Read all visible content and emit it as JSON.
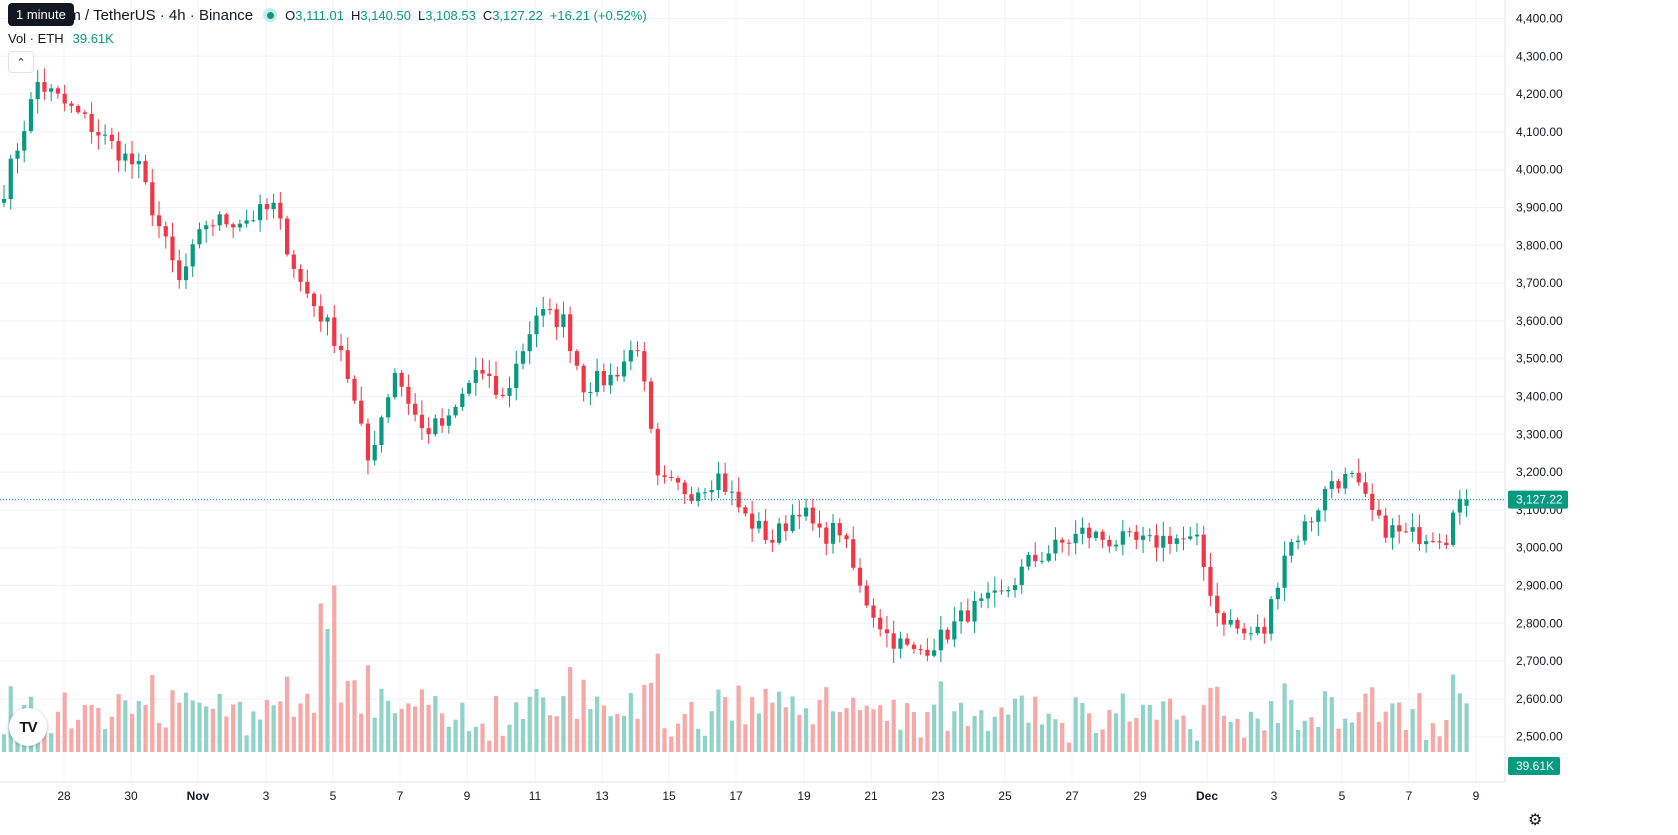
{
  "header": {
    "tooltip": "1 minute",
    "symbol_title": "um / TetherUS · 4h · Binance",
    "ohlc": {
      "open_label": "O",
      "open": "3,111.01",
      "high_label": "H",
      "high": "3,140.50",
      "low_label": "L",
      "low": "3,108.53",
      "close_label": "C",
      "close": "3,127.22",
      "change": "+16.21 (+0.52%)"
    },
    "volume_label": "Vol · ETH",
    "volume_value": "39.61K",
    "collapse_icon": "chevron-up-icon",
    "logo": "TradingView-logo",
    "settings_icon": "gear-icon"
  },
  "colors": {
    "up": "#089981",
    "down": "#f23645",
    "vol_up": "#92d3c9",
    "vol_down": "#f7a9a7",
    "grid": "#f0f3fa",
    "text": "#131722"
  },
  "chart_data": {
    "type": "candlestick",
    "interval": "4h",
    "y_axis": {
      "ticks": [
        4400,
        4300,
        4200,
        4100,
        4000,
        3900,
        3800,
        3700,
        3600,
        3500,
        3400,
        3300,
        3200,
        3100,
        3000,
        2900,
        2800,
        2700,
        2600,
        2500
      ],
      "tick_labels": [
        "4,400.00",
        "4,300.00",
        "4,200.00",
        "4,100.00",
        "4,000.00",
        "3,900.00",
        "3,800.00",
        "3,700.00",
        "3,600.00",
        "3,500.00",
        "3,400.00",
        "3,300.00",
        "3,200.00",
        "3,100.00",
        "3,000.00",
        "2,900.00",
        "2,800.00",
        "2,700.00",
        "2,600.00",
        "2,500.00"
      ],
      "range": [
        2430,
        4435
      ]
    },
    "x_axis": {
      "labels": [
        "28",
        "30",
        "Nov",
        "3",
        "5",
        "7",
        "9",
        "11",
        "13",
        "15",
        "17",
        "19",
        "21",
        "23",
        "25",
        "27",
        "29",
        "Dec",
        "3",
        "5",
        "7",
        "9"
      ],
      "bold": [
        "Nov",
        "Dec"
      ]
    },
    "last_price": 3127.22,
    "last_price_label": "3,127.22",
    "last_volume_label": "39.61K",
    "anchors": [
      [
        0,
        3950
      ],
      [
        5,
        4230
      ],
      [
        12,
        4130
      ],
      [
        20,
        4000
      ],
      [
        26,
        3700
      ],
      [
        30,
        3860
      ],
      [
        36,
        3870
      ],
      [
        40,
        3900
      ],
      [
        44,
        3700
      ],
      [
        50,
        3530
      ],
      [
        54,
        3230
      ],
      [
        58,
        3470
      ],
      [
        62,
        3310
      ],
      [
        66,
        3330
      ],
      [
        70,
        3470
      ],
      [
        74,
        3390
      ],
      [
        79,
        3620
      ],
      [
        83,
        3600
      ],
      [
        86,
        3430
      ],
      [
        90,
        3450
      ],
      [
        94,
        3540
      ],
      [
        97,
        3170
      ],
      [
        102,
        3150
      ],
      [
        106,
        3190
      ],
      [
        110,
        3080
      ],
      [
        114,
        3020
      ],
      [
        118,
        3110
      ],
      [
        121,
        3030
      ],
      [
        124,
        3050
      ],
      [
        127,
        2890
      ],
      [
        131,
        2770
      ],
      [
        135,
        2720
      ],
      [
        139,
        2760
      ],
      [
        143,
        2830
      ],
      [
        148,
        2870
      ],
      [
        152,
        2960
      ],
      [
        156,
        3000
      ],
      [
        160,
        3040
      ],
      [
        164,
        3020
      ],
      [
        170,
        3010
      ],
      [
        173,
        3030
      ],
      [
        177,
        3010
      ],
      [
        180,
        2830
      ],
      [
        184,
        2770
      ],
      [
        187,
        2780
      ],
      [
        190,
        2990
      ],
      [
        194,
        3080
      ],
      [
        197,
        3180
      ],
      [
        200,
        3180
      ],
      [
        204,
        3060
      ],
      [
        208,
        3030
      ],
      [
        212,
        3040
      ],
      [
        214,
        3030
      ],
      [
        215,
        3120
      ],
      [
        217,
        3127.22
      ]
    ],
    "volume_max_label": "spike at Nov 4-5"
  }
}
